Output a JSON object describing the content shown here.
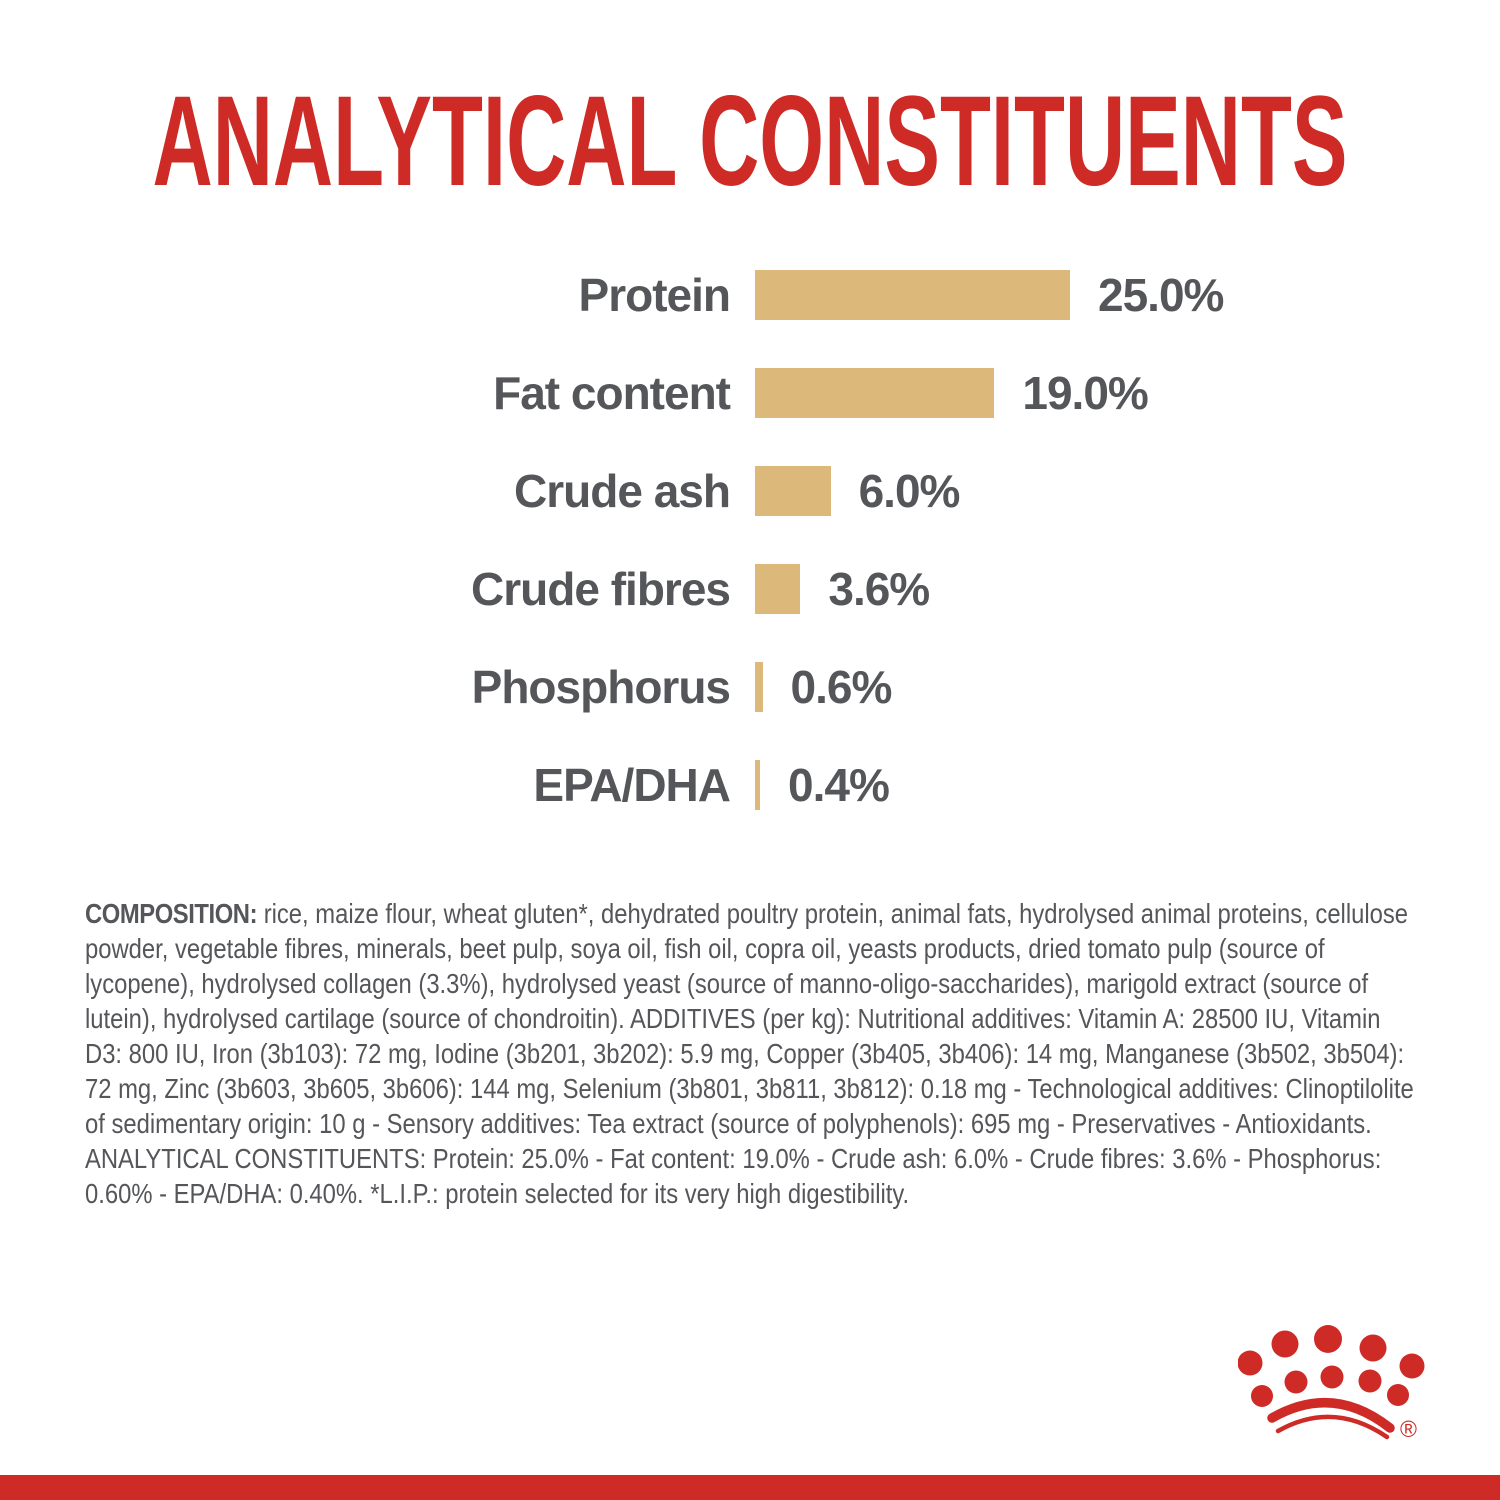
{
  "colors": {
    "red": "#CE2B27",
    "tan": "#DCB87B",
    "gray": "#55565A"
  },
  "chart_data": {
    "type": "bar",
    "orientation": "horizontal",
    "title": "ANALYTICAL CONSTITUENTS",
    "categories": [
      "Protein",
      "Fat content",
      "Crude ash",
      "Crude fibres",
      "Phosphorus",
      "EPA/DHA"
    ],
    "values": [
      25.0,
      19.0,
      6.0,
      3.6,
      0.6,
      0.4
    ],
    "value_labels": [
      "25.0%",
      "19.0%",
      "6.0%",
      "3.6%",
      "0.6%",
      "0.4%"
    ],
    "unit": "%",
    "xlabel": "",
    "ylabel": "",
    "xlim": [
      0,
      25
    ],
    "grid": false,
    "legend": "none",
    "bar_color": "#DCB87B"
  },
  "composition": {
    "heading": "COMPOSITION:",
    "body": " rice, maize flour, wheat gluten*, dehydrated poultry protein, animal fats, hydrolysed animal proteins, cellulose powder, vegetable fibres, minerals, beet pulp, soya oil, fish oil, copra oil, yeasts products, dried tomato pulp (source of lycopene), hydrolysed collagen (3.3%), hydrolysed yeast (source of manno-oligo-saccharides), marigold extract (source of lutein), hydrolysed cartilage (source of chondroitin). ADDITIVES (per kg): Nutritional additives: Vitamin A: 28500 IU, Vitamin D3: 800 IU, Iron (3b103): 72 mg, Iodine (3b201, 3b202): 5.9 mg, Copper (3b405, 3b406): 14 mg, Manganese (3b502, 3b504): 72 mg, Zinc (3b603, 3b605, 3b606): 144 mg, Selenium (3b801, 3b811, 3b812): 0.18 mg - Technological additives: Clinoptilolite of sedimentary origin: 10 g - Sensory additives: Tea extract (source of polyphenols): 695 mg - Preservatives - Antioxidants. ANALYTICAL CONSTITUENTS: Protein: 25.0% - Fat content: 19.0% - Crude ash: 6.0% - Crude fibres: 3.6% - Phosphorus: 0.60% - EPA/DHA: 0.40%. *L.I.P.: protein selected for its very high digestibility."
  },
  "logo": {
    "name": "royal-canin-crown",
    "registered_mark": "®"
  }
}
